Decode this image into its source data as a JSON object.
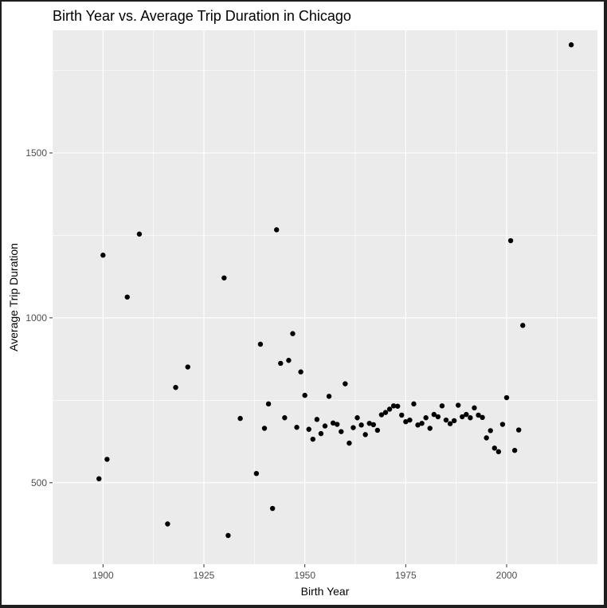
{
  "chart_data": {
    "type": "scatter",
    "title": "Birth Year vs. Average Trip Duration in Chicago",
    "xlabel": "Birth Year",
    "ylabel": "Average Trip Duration",
    "xlim": [
      1887.5,
      2022.5
    ],
    "ylim": [
      253,
      1872
    ],
    "x_ticks": [
      1900,
      1925,
      1950,
      1975,
      2000
    ],
    "y_ticks": [
      500,
      1000,
      1500
    ],
    "grid": true,
    "panel_background": "#ebebeb",
    "grid_color": "#ffffff",
    "point_color": "#000000",
    "x": [
      1899,
      1900,
      1901,
      1906,
      1909,
      1916,
      1918,
      1921,
      1930,
      1931,
      1934,
      1938,
      1939,
      1940,
      1941,
      1942,
      1943,
      1944,
      1945,
      1946,
      1947,
      1948,
      1949,
      1950,
      1951,
      1952,
      1953,
      1954,
      1955,
      1956,
      1957,
      1958,
      1959,
      1960,
      1961,
      1962,
      1963,
      1964,
      1965,
      1966,
      1967,
      1968,
      1969,
      1970,
      1971,
      1972,
      1973,
      1974,
      1975,
      1976,
      1977,
      1978,
      1979,
      1980,
      1981,
      1982,
      1983,
      1984,
      1985,
      1986,
      1987,
      1988,
      1989,
      1990,
      1991,
      1992,
      1993,
      1994,
      1995,
      1996,
      1997,
      1998,
      1999,
      2000,
      2001,
      2002,
      2003,
      2004,
      2016
    ],
    "y": [
      512,
      1190,
      571,
      1063,
      1254,
      375,
      789,
      851,
      1121,
      340,
      695,
      528,
      920,
      665,
      739,
      422,
      1267,
      862,
      697,
      871,
      952,
      668,
      836,
      765,
      662,
      632,
      692,
      649,
      672,
      762,
      681,
      677,
      655,
      800,
      620,
      667,
      697,
      675,
      646,
      680,
      676,
      659,
      706,
      713,
      723,
      733,
      732,
      705,
      685,
      690,
      739,
      675,
      680,
      697,
      665,
      707,
      700,
      733,
      690,
      679,
      688,
      735,
      700,
      707,
      697,
      727,
      705,
      698,
      636,
      658,
      605,
      594,
      677,
      758,
      1234,
      598,
      660,
      977,
      1828
    ]
  }
}
